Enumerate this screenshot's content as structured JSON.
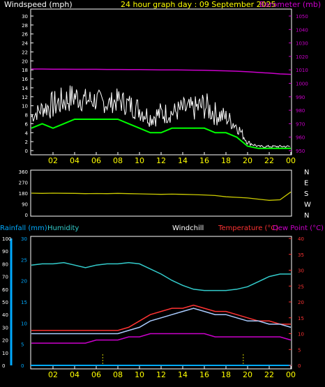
{
  "header": {
    "left": "Windspeed (mph)",
    "center": "24 hour graph day : 09 September 2025",
    "right": "Barometer (mb)"
  },
  "colors": {
    "background": "#000000",
    "frame": "#ffffff",
    "x_tick_label": "#ffff00",
    "wind_gust": "#ffffff",
    "wind_avg": "#00ff00",
    "barometer": "#cc00cc",
    "direction": "#cccc00",
    "humidity": "#33cccc",
    "rainfall": "#00aaff",
    "temperature": "#ff3333",
    "windchill": "#aaccff",
    "dewpoint": "#cc00cc",
    "rain_marks": "#cccc00"
  },
  "x_tick_labels": [
    "02",
    "04",
    "06",
    "08",
    "10",
    "12",
    "14",
    "16",
    "18",
    "20",
    "22",
    "00"
  ],
  "chart_data": [
    {
      "type": "line",
      "id": "wind_baro",
      "ylabel_left": "Windspeed (mph)",
      "ylabel_right": "Barometer (mb)",
      "ylim_left": [
        0,
        30
      ],
      "ylim_right": [
        950,
        1050
      ],
      "y_ticks_left": [
        "0",
        "2",
        "4",
        "6",
        "8",
        "10",
        "12",
        "14",
        "16",
        "18",
        "20",
        "22",
        "24",
        "26",
        "28",
        "30"
      ],
      "y_ticks_right": [
        "950",
        "960",
        "970",
        "980",
        "990",
        "1000",
        "1010",
        "1020",
        "1030",
        "1040",
        "1050"
      ],
      "x_hours": [
        0,
        1,
        2,
        3,
        4,
        5,
        6,
        7,
        8,
        9,
        10,
        11,
        12,
        13,
        14,
        15,
        16,
        17,
        18,
        19,
        20,
        21,
        22,
        23,
        24
      ],
      "series": [
        {
          "axis": "left",
          "values": [
            8,
            10,
            11,
            12,
            13,
            12,
            12,
            11,
            12,
            11,
            10,
            8,
            9,
            9,
            10,
            10,
            11,
            9,
            8,
            6,
            2,
            1,
            1,
            1,
            1
          ]
        },
        {
          "axis": "left",
          "values": [
            5,
            6,
            5,
            6,
            7,
            7,
            7,
            7,
            7,
            6,
            5,
            4,
            4,
            5,
            5,
            5,
            5,
            4,
            4,
            3,
            1,
            0.5,
            0.5,
            0.5,
            0.5
          ]
        },
        {
          "axis": "right",
          "values": [
            1010.6,
            1010.6,
            1010.5,
            1010.5,
            1010.4,
            1010.4,
            1010.4,
            1010.3,
            1010.3,
            1010.2,
            1010.2,
            1010.1,
            1010.0,
            1010.0,
            1009.9,
            1009.8,
            1009.7,
            1009.5,
            1009.3,
            1009.0,
            1008.6,
            1008.1,
            1007.6,
            1007.0,
            1006.7
          ]
        }
      ]
    },
    {
      "type": "line",
      "id": "direction",
      "y_ticks_left": [
        "0",
        "90",
        "180",
        "270",
        "360"
      ],
      "y_ticks_right": [
        "N",
        "W",
        "S",
        "E",
        "N"
      ],
      "ylim": [
        0,
        360
      ],
      "x_hours": [
        0,
        1,
        2,
        3,
        4,
        5,
        6,
        7,
        8,
        9,
        10,
        11,
        12,
        13,
        14,
        15,
        16,
        17,
        18,
        19,
        20,
        21,
        22,
        23,
        24
      ],
      "series": [
        {
          "values": [
            180,
            178,
            180,
            179,
            178,
            176,
            177,
            176,
            178,
            176,
            174,
            172,
            170,
            172,
            170,
            168,
            165,
            160,
            150,
            145,
            140,
            130,
            120,
            125,
            190
          ]
        }
      ]
    },
    {
      "type": "line",
      "id": "temp_humidity",
      "labels": {
        "rainfall": "Rainfall (mm)",
        "humidity": "Humidity",
        "windchill": "Windchill",
        "temperature": "Temperature (°C)",
        "dewpoint": "Dew Point (°C)"
      },
      "y_ticks_humidity": [
        "0",
        "10",
        "20",
        "30",
        "40",
        "50",
        "60",
        "70",
        "80",
        "90",
        "100"
      ],
      "y_ticks_rain": [
        "0",
        "5",
        "10",
        "15",
        "20",
        "25",
        "30"
      ],
      "y_ticks_temp": [
        "0",
        "5",
        "10",
        "15",
        "20",
        "25",
        "30",
        "35",
        "40"
      ],
      "ylim_humidity": [
        0,
        100
      ],
      "ylim_temp": [
        0,
        40
      ],
      "x_hours": [
        0,
        1,
        2,
        3,
        4,
        5,
        6,
        7,
        8,
        9,
        10,
        11,
        12,
        13,
        14,
        15,
        16,
        17,
        18,
        19,
        20,
        21,
        22,
        23,
        24
      ],
      "series": [
        {
          "axis": "humidity",
          "values": [
            79,
            80,
            80,
            81,
            79,
            77,
            79,
            80,
            80,
            81,
            80,
            76,
            72,
            67,
            63,
            60,
            59,
            59,
            59,
            60,
            62,
            66,
            70,
            72,
            72
          ]
        },
        {
          "axis": "temp",
          "values": [
            11,
            11,
            11,
            11,
            11,
            11,
            11,
            11,
            11,
            12,
            14,
            16,
            17,
            18,
            18,
            19,
            18,
            17,
            17,
            16,
            15,
            14,
            14,
            13,
            13
          ]
        },
        {
          "axis": "temp",
          "values": [
            10,
            10,
            10,
            10,
            10,
            10,
            10,
            10,
            10,
            11,
            12,
            14,
            15,
            16,
            17,
            18,
            17,
            16,
            16,
            15,
            14,
            14,
            13,
            13,
            12
          ]
        },
        {
          "axis": "temp",
          "values": [
            7,
            7,
            7,
            7,
            7,
            7,
            8,
            8,
            8,
            9,
            9,
            10,
            10,
            10,
            10,
            10,
            10,
            9,
            9,
            9,
            9,
            9,
            9,
            9,
            8
          ]
        }
      ],
      "rain_hours": [
        6.6,
        19.6
      ]
    }
  ]
}
